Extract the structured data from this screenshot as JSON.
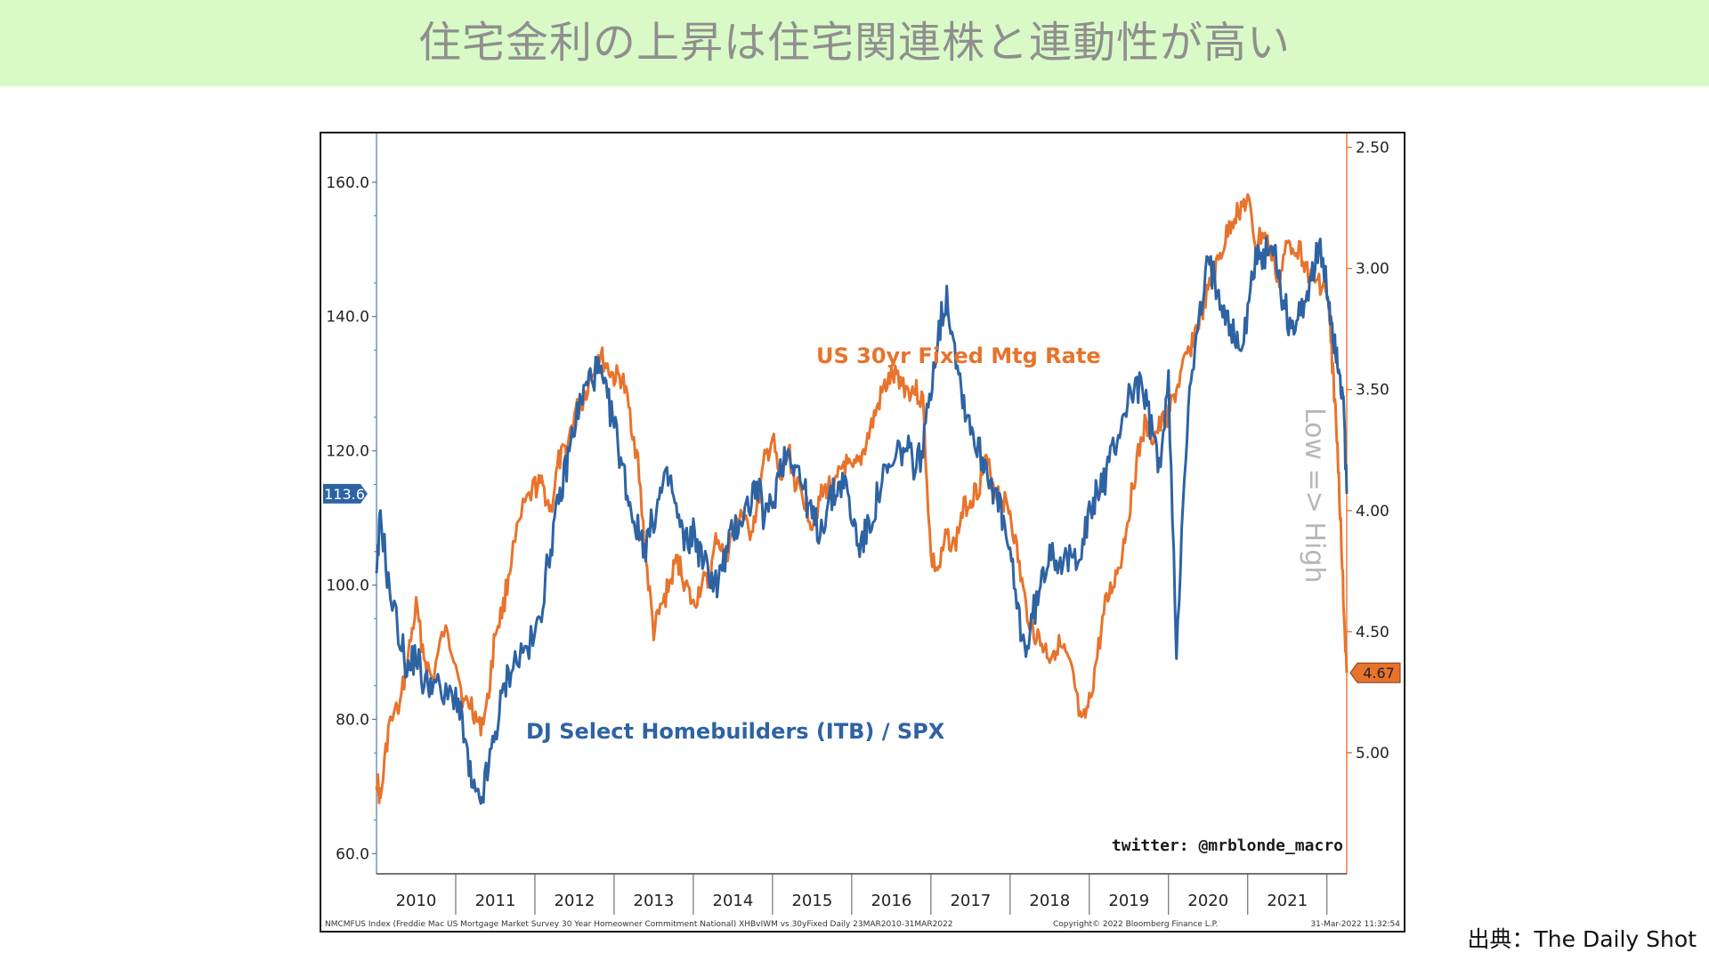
{
  "banner": {
    "title": "住宅金利の上昇は住宅関連株と連動性が高い"
  },
  "source": {
    "text": "出典：The Daily Shot"
  },
  "colors": {
    "banner_bg": "#d9fac6",
    "itb": "#2e63a3",
    "mortgage": "#e8732c",
    "axis": "#4a7aaf"
  },
  "chart_data": {
    "type": "line",
    "x_range": [
      "2010-01",
      "2022-03"
    ],
    "x_ticks": [
      "2010",
      "2011",
      "2012",
      "2013",
      "2014",
      "2015",
      "2016",
      "2017",
      "2018",
      "2019",
      "2020",
      "2021"
    ],
    "left_axis": {
      "ylim": [
        57,
        167
      ],
      "ticks": [
        "160.0",
        "140.0",
        "120.0",
        "100.0",
        "80.0",
        "60.0"
      ],
      "tick_values": [
        160,
        140,
        120,
        100,
        80,
        60
      ],
      "last_value": "113.6"
    },
    "right_axis": {
      "inverted": true,
      "ylim": [
        2.45,
        5.5
      ],
      "ticks": [
        "2.50",
        "3.00",
        "3.50",
        "4.00",
        "4.50",
        "5.00"
      ],
      "tick_values": [
        2.5,
        3.0,
        3.5,
        4.0,
        4.5,
        5.0
      ],
      "last_value": "4.67",
      "label": "Low => High"
    },
    "series": [
      {
        "name": "US 30yr Fixed Mtg Rate",
        "axis": "right",
        "x": [
          2010.0,
          2010.05,
          2010.15,
          2010.3,
          2010.4,
          2010.5,
          2010.6,
          2010.7,
          2010.85,
          2011.0,
          2011.1,
          2011.2,
          2011.3,
          2011.4,
          2011.5,
          2011.6,
          2011.7,
          2011.85,
          2012.0,
          2012.1,
          2012.2,
          2012.3,
          2012.4,
          2012.5,
          2012.6,
          2012.7,
          2012.8,
          2012.9,
          2013.0,
          2013.1,
          2013.2,
          2013.3,
          2013.4,
          2013.5,
          2013.6,
          2013.7,
          2013.8,
          2013.9,
          2014.0,
          2014.1,
          2014.2,
          2014.3,
          2014.4,
          2014.5,
          2014.6,
          2014.7,
          2014.8,
          2014.9,
          2015.0,
          2015.1,
          2015.2,
          2015.3,
          2015.4,
          2015.5,
          2015.6,
          2015.7,
          2015.8,
          2015.9,
          2016.0,
          2016.1,
          2016.2,
          2016.3,
          2016.4,
          2016.5,
          2016.6,
          2016.7,
          2016.8,
          2016.9,
          2017.0,
          2017.1,
          2017.2,
          2017.3,
          2017.4,
          2017.5,
          2017.6,
          2017.7,
          2017.8,
          2017.9,
          2018.0,
          2018.1,
          2018.2,
          2018.3,
          2018.4,
          2018.5,
          2018.6,
          2018.7,
          2018.8,
          2018.9,
          2019.0,
          2019.1,
          2019.2,
          2019.3,
          2019.4,
          2019.5,
          2019.6,
          2019.7,
          2019.8,
          2019.9,
          2020.0,
          2020.1,
          2020.2,
          2020.3,
          2020.4,
          2020.5,
          2020.6,
          2020.7,
          2020.8,
          2020.9,
          2021.0,
          2021.1,
          2021.2,
          2021.3,
          2021.4,
          2021.5,
          2021.6,
          2021.7,
          2021.8,
          2021.9,
          2022.0,
          2022.05,
          2022.1,
          2022.15,
          2022.2,
          2022.25
        ],
        "values": [
          5.1,
          5.2,
          4.9,
          4.8,
          4.6,
          4.4,
          4.6,
          4.7,
          4.5,
          4.6,
          4.8,
          4.8,
          4.9,
          4.8,
          4.5,
          4.4,
          4.2,
          4.0,
          3.9,
          3.9,
          4.0,
          3.8,
          3.75,
          3.6,
          3.55,
          3.45,
          3.35,
          3.4,
          3.45,
          3.45,
          3.6,
          3.8,
          4.2,
          4.5,
          4.4,
          4.3,
          4.2,
          4.3,
          4.4,
          4.3,
          4.3,
          4.1,
          4.2,
          4.1,
          4.0,
          4.1,
          4.0,
          3.8,
          3.7,
          3.9,
          3.75,
          3.9,
          3.95,
          4.05,
          3.95,
          3.9,
          3.9,
          3.8,
          3.85,
          3.8,
          3.7,
          3.6,
          3.5,
          3.45,
          3.45,
          3.5,
          3.5,
          3.55,
          4.2,
          4.25,
          4.1,
          4.15,
          4.0,
          3.95,
          3.9,
          3.8,
          3.9,
          3.95,
          4.0,
          4.2,
          4.4,
          4.5,
          4.55,
          4.6,
          4.55,
          4.6,
          4.7,
          4.9,
          4.8,
          4.6,
          4.4,
          4.3,
          4.2,
          4.0,
          3.8,
          3.65,
          3.7,
          3.65,
          3.6,
          3.5,
          3.4,
          3.3,
          3.2,
          3.1,
          3.0,
          2.9,
          2.8,
          2.75,
          2.72,
          2.9,
          2.85,
          2.95,
          3.05,
          2.9,
          2.9,
          2.95,
          3.05,
          3.05,
          3.1,
          3.3,
          3.55,
          3.85,
          4.3,
          4.67
        ]
      },
      {
        "name": "DJ Select Homebuilders (ITB) / SPX",
        "axis": "left",
        "x": [
          2010.0,
          2010.05,
          2010.15,
          2010.3,
          2010.4,
          2010.5,
          2010.6,
          2010.7,
          2010.85,
          2011.0,
          2011.1,
          2011.2,
          2011.3,
          2011.4,
          2011.5,
          2011.6,
          2011.7,
          2011.85,
          2012.0,
          2012.1,
          2012.2,
          2012.3,
          2012.4,
          2012.5,
          2012.6,
          2012.7,
          2012.8,
          2012.9,
          2013.0,
          2013.1,
          2013.2,
          2013.3,
          2013.4,
          2013.5,
          2013.6,
          2013.7,
          2013.8,
          2013.9,
          2014.0,
          2014.1,
          2014.2,
          2014.3,
          2014.4,
          2014.5,
          2014.6,
          2014.7,
          2014.8,
          2014.9,
          2015.0,
          2015.1,
          2015.2,
          2015.3,
          2015.4,
          2015.5,
          2015.6,
          2015.7,
          2015.8,
          2015.9,
          2016.0,
          2016.1,
          2016.2,
          2016.3,
          2016.4,
          2016.5,
          2016.6,
          2016.7,
          2016.8,
          2016.9,
          2017.0,
          2017.1,
          2017.2,
          2017.3,
          2017.4,
          2017.5,
          2017.6,
          2017.7,
          2017.8,
          2017.9,
          2018.0,
          2018.1,
          2018.2,
          2018.3,
          2018.4,
          2018.5,
          2018.6,
          2018.7,
          2018.8,
          2018.9,
          2019.0,
          2019.1,
          2019.2,
          2019.3,
          2019.4,
          2019.5,
          2019.6,
          2019.7,
          2019.8,
          2019.9,
          2020.0,
          2020.1,
          2020.2,
          2020.3,
          2020.4,
          2020.5,
          2020.6,
          2020.7,
          2020.8,
          2020.9,
          2021.0,
          2021.1,
          2021.2,
          2021.3,
          2021.4,
          2021.5,
          2021.6,
          2021.7,
          2021.8,
          2021.9,
          2022.0,
          2022.05,
          2022.1,
          2022.15,
          2022.2,
          2022.25
        ],
        "values": [
          100,
          111,
          100,
          92,
          87,
          90,
          85,
          86,
          83,
          84,
          78,
          70,
          67,
          72,
          78,
          84,
          88,
          90,
          92,
          98,
          106,
          112,
          118,
          124,
          128,
          131,
          132,
          128,
          124,
          118,
          112,
          108,
          106,
          110,
          114,
          116,
          110,
          106,
          108,
          104,
          102,
          100,
          104,
          108,
          110,
          112,
          115,
          110,
          112,
          118,
          120,
          118,
          114,
          110,
          108,
          112,
          114,
          116,
          110,
          106,
          108,
          112,
          116,
          117,
          120,
          120,
          118,
          120,
          130,
          138,
          143,
          136,
          128,
          124,
          120,
          118,
          114,
          110,
          104,
          96,
          90,
          96,
          100,
          106,
          104,
          103,
          104,
          106,
          110,
          114,
          116,
          120,
          124,
          128,
          130,
          128,
          122,
          118,
          130,
          90,
          118,
          132,
          140,
          148,
          145,
          142,
          138,
          135,
          140,
          150,
          148,
          152,
          145,
          140,
          138,
          142,
          146,
          150,
          144,
          140,
          136,
          133,
          128,
          113.6
        ]
      }
    ],
    "annotations": {
      "watermark": "twitter: @mrblonde_macro",
      "footer_left": "NMCMFUS Index (Freddie Mac US Mortgage Market Survey 30 Year Homeowner Commitment National) XHBvIWM vs 30yFixed  Daily 23MAR2010-31MAR2022",
      "footer_mid": "Copyright© 2022 Bloomberg Finance L.P.",
      "footer_right": "31-Mar-2022 11:32:54"
    }
  }
}
